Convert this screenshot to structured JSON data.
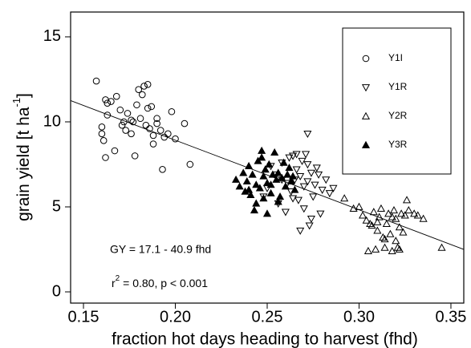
{
  "chart_data": {
    "type": "scatter",
    "xlabel": "fraction hot days heading to harvest (fhd)",
    "ylabel": {
      "text": "grain yield [t ha",
      "sup": "-1",
      "after": "]"
    },
    "xlim": [
      0.143,
      0.357
    ],
    "ylim": [
      -0.66,
      16.46
    ],
    "xticks": [
      0.15,
      0.2,
      0.25,
      0.3,
      0.35
    ],
    "yticks": [
      0,
      5,
      10,
      15
    ],
    "xtick_labels": [
      "0.15",
      "0.20",
      "0.25",
      "0.30",
      "0.35"
    ],
    "legend": "top-right",
    "color": "#000000",
    "fit": {
      "intercept": 17.1,
      "slope": -40.9
    },
    "annotations": [
      {
        "text": "GY = 17.1 - 40.9 fhd"
      },
      {
        "text": "r",
        "sup": "2",
        "after": " = 0.80, p < 0.001"
      }
    ],
    "series": [
      {
        "name": "Y1I",
        "marker": "circle",
        "x": [
          0.157,
          0.162,
          0.163,
          0.165,
          0.16,
          0.16,
          0.161,
          0.162,
          0.163,
          0.167,
          0.168,
          0.17,
          0.172,
          0.173,
          0.174,
          0.176,
          0.177,
          0.178,
          0.179,
          0.18,
          0.181,
          0.182,
          0.183,
          0.184,
          0.185,
          0.185,
          0.186,
          0.187,
          0.188,
          0.188,
          0.19,
          0.19,
          0.192,
          0.193,
          0.194,
          0.196,
          0.198,
          0.2,
          0.205,
          0.208,
          0.176,
          0.171
        ],
        "values": [
          12.4,
          11.3,
          11.1,
          11.2,
          9.7,
          9.3,
          8.9,
          7.9,
          10.4,
          8.3,
          11.5,
          10.7,
          10.0,
          9.5,
          10.5,
          9.3,
          10.0,
          8.0,
          11.0,
          11.9,
          10.2,
          11.6,
          12.1,
          9.8,
          12.2,
          10.8,
          9.6,
          10.9,
          9.2,
          8.7,
          9.9,
          10.2,
          9.5,
          7.2,
          9.1,
          9.3,
          10.6,
          9.0,
          9.9,
          7.5,
          10.1,
          9.8
        ]
      },
      {
        "name": "Y1R",
        "marker": "triangle-down",
        "x": [
          0.248,
          0.25,
          0.252,
          0.255,
          0.256,
          0.258,
          0.26,
          0.261,
          0.262,
          0.263,
          0.264,
          0.265,
          0.266,
          0.267,
          0.268,
          0.268,
          0.269,
          0.27,
          0.27,
          0.271,
          0.272,
          0.272,
          0.273,
          0.274,
          0.275,
          0.276,
          0.277,
          0.278,
          0.279,
          0.28,
          0.282,
          0.284,
          0.286,
          0.272,
          0.264,
          0.258,
          0.266,
          0.274
        ],
        "values": [
          5.6,
          6.1,
          7.4,
          6.9,
          5.2,
          7.6,
          4.7,
          6.4,
          7.9,
          5.9,
          8.0,
          6.6,
          7.2,
          5.4,
          6.8,
          3.6,
          7.7,
          6.2,
          4.9,
          8.1,
          9.3,
          6.5,
          3.9,
          7.0,
          5.6,
          6.3,
          7.3,
          6.9,
          4.6,
          6.0,
          6.6,
          5.8,
          6.1,
          7.5,
          5.5,
          6.6,
          8.1,
          4.3
        ]
      },
      {
        "name": "Y2R",
        "marker": "triangle-up",
        "x": [
          0.292,
          0.297,
          0.3,
          0.302,
          0.304,
          0.305,
          0.307,
          0.308,
          0.309,
          0.31,
          0.311,
          0.312,
          0.313,
          0.314,
          0.315,
          0.316,
          0.317,
          0.318,
          0.319,
          0.32,
          0.32,
          0.321,
          0.322,
          0.323,
          0.324,
          0.325,
          0.326,
          0.327,
          0.33,
          0.332,
          0.335,
          0.345,
          0.31,
          0.314,
          0.318,
          0.322,
          0.306
        ],
        "values": [
          5.5,
          4.9,
          5.0,
          4.5,
          4.2,
          2.4,
          3.9,
          4.7,
          2.5,
          3.6,
          4.4,
          4.9,
          3.2,
          2.6,
          4.0,
          4.6,
          3.4,
          2.4,
          4.8,
          3.0,
          4.3,
          2.6,
          3.8,
          4.6,
          3.5,
          4.5,
          5.4,
          4.8,
          4.6,
          4.5,
          4.3,
          2.6,
          4.1,
          3.1,
          4.4,
          2.5,
          4.0
        ]
      },
      {
        "name": "Y3R",
        "marker": "triangle-up-filled",
        "x": [
          0.233,
          0.235,
          0.237,
          0.238,
          0.239,
          0.24,
          0.241,
          0.242,
          0.243,
          0.244,
          0.245,
          0.246,
          0.247,
          0.248,
          0.248,
          0.249,
          0.25,
          0.25,
          0.251,
          0.252,
          0.253,
          0.254,
          0.255,
          0.256,
          0.257,
          0.258,
          0.259,
          0.26,
          0.261,
          0.262,
          0.263,
          0.264,
          0.265,
          0.244,
          0.24,
          0.247,
          0.252,
          0.256
        ],
        "values": [
          6.6,
          6.2,
          7.0,
          5.9,
          6.5,
          7.4,
          5.7,
          6.9,
          4.8,
          6.3,
          7.7,
          6.1,
          8.3,
          5.5,
          6.8,
          7.2,
          4.6,
          6.4,
          7.5,
          5.8,
          6.9,
          8.2,
          6.6,
          7.0,
          5.6,
          6.7,
          7.6,
          6.2,
          6.9,
          7.3,
          6.5,
          6.8,
          6.0,
          5.2,
          6.0,
          7.9,
          6.3,
          5.3
        ]
      }
    ]
  }
}
